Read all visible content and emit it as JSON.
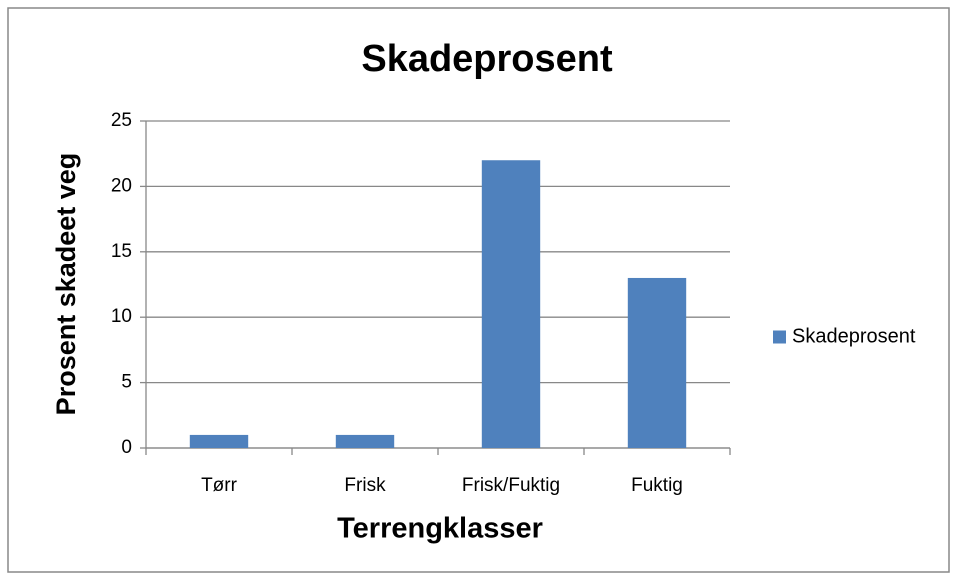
{
  "chart_data": {
    "type": "bar",
    "title": "Skadeprosent",
    "x_label": "Terrengklasser",
    "y_label": "Prosent skadeet veg",
    "categories": [
      "Tørr",
      "Frisk",
      "Frisk/Fuktig",
      "Fuktig"
    ],
    "series": [
      {
        "name": "Skadeprosent",
        "color": "#4f81bd",
        "values": [
          1,
          1,
          22,
          13
        ]
      }
    ],
    "ylim": [
      0,
      25
    ],
    "yticks": [
      0,
      5,
      10,
      15,
      20,
      25
    ],
    "grid": true,
    "legend": "right"
  }
}
